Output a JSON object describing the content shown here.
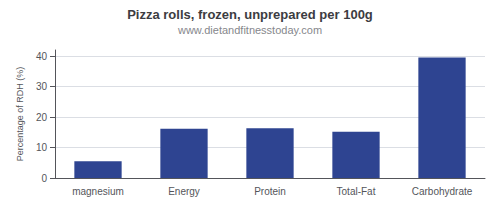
{
  "chart_data": {
    "type": "bar",
    "title": "Pizza rolls, frozen, unprepared per 100g",
    "subtitle": "www.dietandfitnesstoday.com",
    "categories": [
      "magnesium",
      "Energy",
      "Protein",
      "Total-Fat",
      "Carbohydrate"
    ],
    "values": [
      5.5,
      16.2,
      16.3,
      15.2,
      39.5
    ],
    "color": "#2e4491",
    "ylabel": "Percentage of RDH (%)",
    "ylim": [
      0,
      42
    ],
    "yticks": [
      0,
      10,
      20,
      30,
      40
    ],
    "grid": true
  }
}
